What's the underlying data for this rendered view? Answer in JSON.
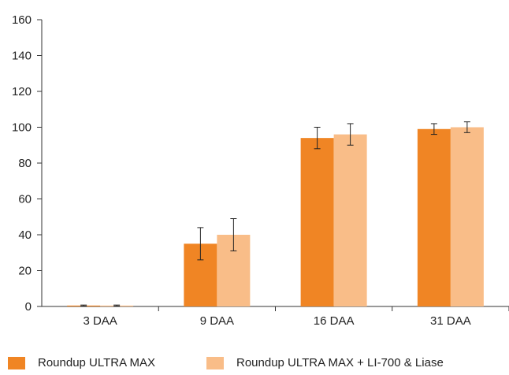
{
  "chart_data": {
    "type": "bar",
    "categories": [
      "3 DAA",
      "9 DAA",
      "16 DAA",
      "31 DAA"
    ],
    "series": [
      {
        "name": "Roundup ULTRA MAX",
        "color": "#f08524",
        "values": [
          0.5,
          35,
          94,
          99
        ],
        "error": [
          0.3,
          9,
          6,
          3
        ]
      },
      {
        "name": "Roundup ULTRA MAX + LI-700 & Liase",
        "color": "#f9bd88",
        "values": [
          0.5,
          40,
          96,
          100
        ],
        "error": [
          0.3,
          9,
          6,
          3
        ]
      }
    ],
    "title": "",
    "xlabel": "",
    "ylabel": "",
    "ylim": [
      0,
      160
    ],
    "yticks": [
      "0",
      "20",
      "40",
      "60",
      "80",
      "100",
      "120",
      "140",
      "160"
    ],
    "grid": false,
    "legend_position": "bottom"
  }
}
